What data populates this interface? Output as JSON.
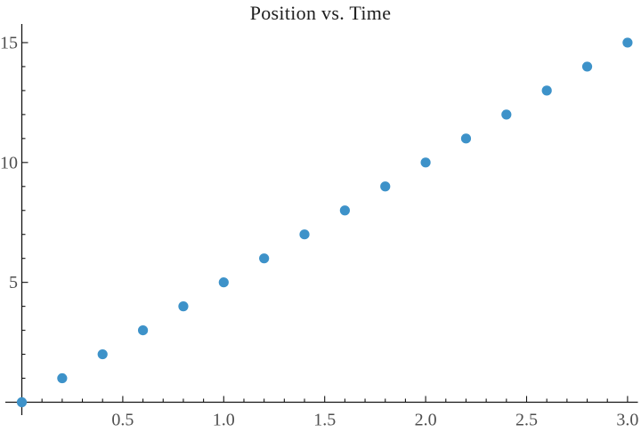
{
  "chart_data": {
    "type": "scatter",
    "title": "Position vs. Time",
    "x": [
      0.0,
      0.2,
      0.4,
      0.6,
      0.8,
      1.0,
      1.2,
      1.4,
      1.6,
      1.8,
      2.0,
      2.2,
      2.4,
      2.6,
      2.8,
      3.0
    ],
    "y": [
      0,
      1,
      2,
      3,
      4,
      5,
      6,
      7,
      8,
      9,
      10,
      11,
      12,
      13,
      14,
      15
    ],
    "xlabel": "",
    "ylabel": "",
    "xlim": [
      0,
      3.0
    ],
    "ylim": [
      0,
      15
    ],
    "x_ticks": {
      "major": [
        0.5,
        1.0,
        1.5,
        2.0,
        2.5,
        3.0
      ],
      "labels": [
        "0.5",
        "1.0",
        "1.5",
        "2.0",
        "2.5",
        "3.0"
      ],
      "minor_step": 0.1
    },
    "y_ticks": {
      "major": [
        5,
        10,
        15
      ],
      "labels": [
        "5",
        "10",
        "15"
      ],
      "minor_step": 1
    },
    "grid": false,
    "legend": "none",
    "axes_style": "crossed-at-origin",
    "styles": {
      "point_color": "#3d92c9",
      "axis_color": "#151515",
      "tick_label_color": "#4f4f4f",
      "title_color": "#1e1e1e",
      "background": "#ffffff"
    }
  }
}
